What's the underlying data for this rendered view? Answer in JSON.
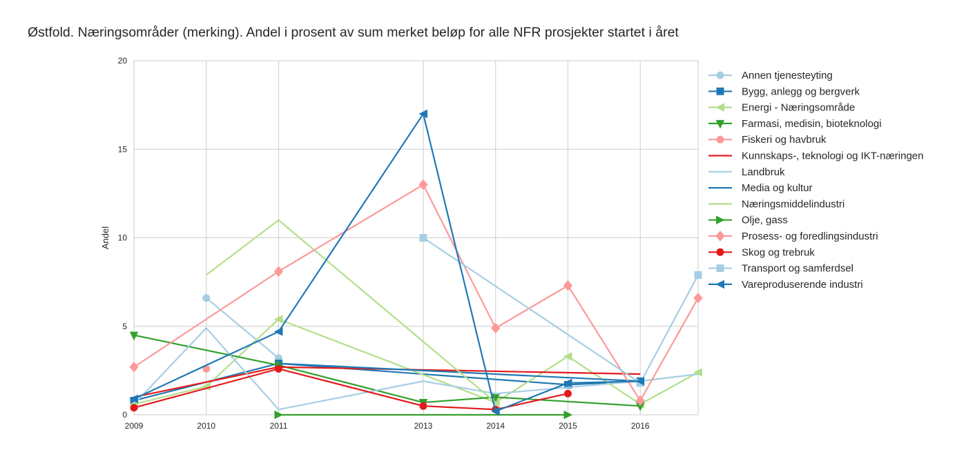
{
  "chart_data": {
    "type": "line",
    "title": "Østfold. Næringsområder (merking). Andel i prosent av sum merket beløp for alle NFR prosjekter startet i året",
    "xlabel": "",
    "ylabel": "Andel",
    "xlim": [
      2009,
      2016.8
    ],
    "ylim": [
      0,
      20
    ],
    "xticks": [
      "2009",
      "2010",
      "2011",
      "2013",
      "2014",
      "2015",
      "2016"
    ],
    "yticks": [
      "0",
      "5",
      "10",
      "15",
      "20"
    ],
    "grid": true,
    "legend_position": "right-outside",
    "series": [
      {
        "name": "Annen tjenesteyting",
        "color": "#a6cee3",
        "marker": "circle",
        "points": [
          [
            2010,
            6.6
          ],
          [
            2011,
            3.2
          ]
        ]
      },
      {
        "name": "Bygg, anlegg og bergverk",
        "color": "#1f78b4",
        "marker": "square",
        "points": [
          [
            2009,
            0.8
          ],
          [
            2011,
            2.9
          ],
          [
            2015,
            1.7
          ],
          [
            2016,
            1.9
          ]
        ]
      },
      {
        "name": "Energi - Næringsområde",
        "color": "#b2df8a",
        "marker": "triangle-left",
        "points": [
          [
            2009,
            0.6
          ],
          [
            2010,
            1.6
          ],
          [
            2011,
            5.4
          ],
          [
            2014,
            0.7
          ],
          [
            2015,
            3.3
          ],
          [
            2016,
            0.6
          ],
          [
            2016.8,
            2.4
          ]
        ]
      },
      {
        "name": "Farmasi, medisin, bioteknologi",
        "color": "#33a02c",
        "marker": "triangle-down",
        "points": [
          [
            2009,
            4.5
          ],
          [
            2011,
            2.8
          ],
          [
            2013,
            0.7
          ],
          [
            2014,
            1.0
          ],
          [
            2016,
            0.5
          ]
        ]
      },
      {
        "name": "Fiskeri og havbruk",
        "color": "#fb9a99",
        "marker": "circle",
        "points": [
          [
            2010,
            2.6
          ]
        ]
      },
      {
        "name": "Kunnskaps-, teknologi og IKT-næringen",
        "color": "#e31a1c",
        "marker": "none",
        "points": [
          [
            2009,
            1.0
          ],
          [
            2011,
            2.7
          ],
          [
            2016,
            2.3
          ]
        ]
      },
      {
        "name": "Landbruk",
        "color": "#a6cee3",
        "marker": "none",
        "points": [
          [
            2009,
            0.6
          ],
          [
            2010,
            4.9
          ],
          [
            2011,
            0.3
          ],
          [
            2013,
            1.9
          ],
          [
            2014,
            1.2
          ],
          [
            2016,
            1.9
          ],
          [
            2016.8,
            2.3
          ]
        ]
      },
      {
        "name": "Media og kultur",
        "color": "#1f78b4",
        "marker": "none",
        "points": [
          [
            2011,
            2.9
          ],
          [
            2016,
            1.9
          ]
        ]
      },
      {
        "name": "Næringsmiddelindustri",
        "color": "#b2df8a",
        "marker": "none",
        "points": [
          [
            2010,
            7.9
          ],
          [
            2011,
            11.0
          ],
          [
            2014,
            0.7
          ]
        ]
      },
      {
        "name": "Olje, gass",
        "color": "#33a02c",
        "marker": "triangle-right",
        "points": [
          [
            2011,
            0.0
          ],
          [
            2015,
            0.0
          ]
        ]
      },
      {
        "name": "Prosess- og foredlingsindustri",
        "color": "#fb9a99",
        "marker": "diamond",
        "points": [
          [
            2009,
            2.7
          ],
          [
            2011,
            8.1
          ],
          [
            2013,
            13.0
          ],
          [
            2014,
            4.9
          ],
          [
            2015,
            7.3
          ],
          [
            2016,
            0.8
          ],
          [
            2016.8,
            6.6
          ]
        ]
      },
      {
        "name": "Skog og trebruk",
        "color": "#e31a1c",
        "marker": "circle",
        "points": [
          [
            2009,
            0.4
          ],
          [
            2011,
            2.6
          ],
          [
            2013,
            0.5
          ],
          [
            2014,
            0.3
          ],
          [
            2015,
            1.2
          ]
        ]
      },
      {
        "name": "Transport og samferdsel",
        "color": "#a6cee3",
        "marker": "square",
        "points": [
          [
            2013,
            10.0
          ],
          [
            2016,
            1.8
          ],
          [
            2016.8,
            7.9
          ]
        ]
      },
      {
        "name": "Vareproduserende industri",
        "color": "#1f78b4",
        "marker": "triangle-left",
        "points": [
          [
            2009,
            0.9
          ],
          [
            2011,
            4.7
          ],
          [
            2013,
            17.0
          ],
          [
            2014,
            0.2
          ],
          [
            2015,
            1.8
          ],
          [
            2016,
            1.9
          ]
        ]
      }
    ]
  }
}
